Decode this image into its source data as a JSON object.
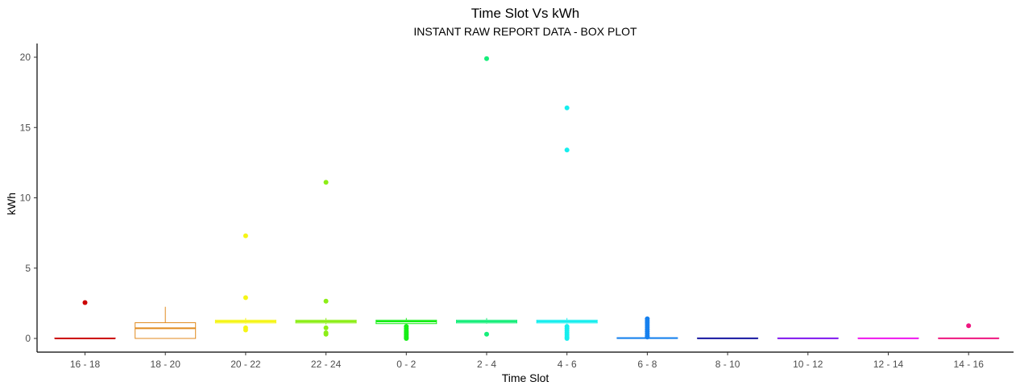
{
  "chart_data": {
    "type": "box",
    "title": "Time Slot Vs kWh",
    "subtitle": "INSTANT RAW REPORT DATA - BOX PLOT",
    "xlabel": "Time Slot",
    "ylabel": "kWh",
    "ylim": [
      0,
      20
    ],
    "yticks": [
      0,
      5,
      10,
      15,
      20
    ],
    "grid": false,
    "categories": [
      "16 - 18",
      "18 - 20",
      "20 - 22",
      "22 - 24",
      "0 - 2",
      "2 - 4",
      "4 - 6",
      "6 - 8",
      "8 - 10",
      "10 - 12",
      "12 - 14",
      "14 - 16"
    ],
    "boxes": [
      {
        "category": "16 - 18",
        "color": "#cc0000",
        "min": 0,
        "q1": 0,
        "median": 0,
        "q3": 0.03,
        "max": 0.05,
        "outliers": [
          2.55
        ]
      },
      {
        "category": "18 - 20",
        "color": "#e08a1e",
        "min": 0,
        "q1": 0,
        "median": 0.72,
        "q3": 1.12,
        "max": 2.25,
        "outliers": []
      },
      {
        "category": "20 - 22",
        "color": "#f5f516",
        "min": 1.05,
        "q1": 1.1,
        "median": 1.2,
        "q3": 1.3,
        "max": 1.45,
        "outliers": [
          7.3,
          2.9,
          0.75,
          0.6
        ]
      },
      {
        "category": "22 - 24",
        "color": "#8cee16",
        "min": 1.0,
        "q1": 1.1,
        "median": 1.2,
        "q3": 1.3,
        "max": 1.45,
        "outliers": [
          11.1,
          2.65,
          0.75,
          0.4,
          0.3
        ]
      },
      {
        "category": "0 - 2",
        "color": "#16ee16",
        "min": 1.0,
        "q1": 1.05,
        "median": 1.2,
        "q3": 1.3,
        "max": 1.45,
        "outliers": [
          0.85,
          0.7,
          0.55,
          0.45,
          0.35,
          0.25,
          0.15,
          0.05,
          0.0
        ]
      },
      {
        "category": "2 - 4",
        "color": "#16ee7a",
        "min": 1.05,
        "q1": 1.1,
        "median": 1.2,
        "q3": 1.3,
        "max": 1.45,
        "outliers": [
          19.9,
          0.3
        ]
      },
      {
        "category": "4 - 6",
        "color": "#16eeee",
        "min": 1.05,
        "q1": 1.1,
        "median": 1.2,
        "q3": 1.3,
        "max": 1.45,
        "outliers": [
          16.4,
          13.4,
          0.85,
          0.7,
          0.55,
          0.4,
          0.25,
          0.1,
          0.0
        ]
      },
      {
        "category": "6 - 8",
        "color": "#1680ee",
        "min": 0,
        "q1": 0,
        "median": 0.02,
        "q3": 0.05,
        "max": 0.08,
        "outliers": [
          1.4,
          1.25,
          1.1,
          0.95,
          0.8,
          0.65,
          0.5,
          0.35,
          0.2,
          0.1
        ]
      },
      {
        "category": "8 - 10",
        "color": "#1616a0",
        "min": 0,
        "q1": 0,
        "median": 0.01,
        "q3": 0.03,
        "max": 0.05,
        "outliers": []
      },
      {
        "category": "10 - 12",
        "color": "#8016ee",
        "min": 0,
        "q1": 0,
        "median": 0.01,
        "q3": 0.03,
        "max": 0.05,
        "outliers": []
      },
      {
        "category": "12 - 14",
        "color": "#ee16ee",
        "min": 0,
        "q1": 0,
        "median": 0.01,
        "q3": 0.03,
        "max": 0.05,
        "outliers": []
      },
      {
        "category": "14 - 16",
        "color": "#ee1680",
        "min": 0,
        "q1": 0,
        "median": 0.01,
        "q3": 0.03,
        "max": 0.05,
        "outliers": [
          0.9
        ]
      }
    ]
  }
}
